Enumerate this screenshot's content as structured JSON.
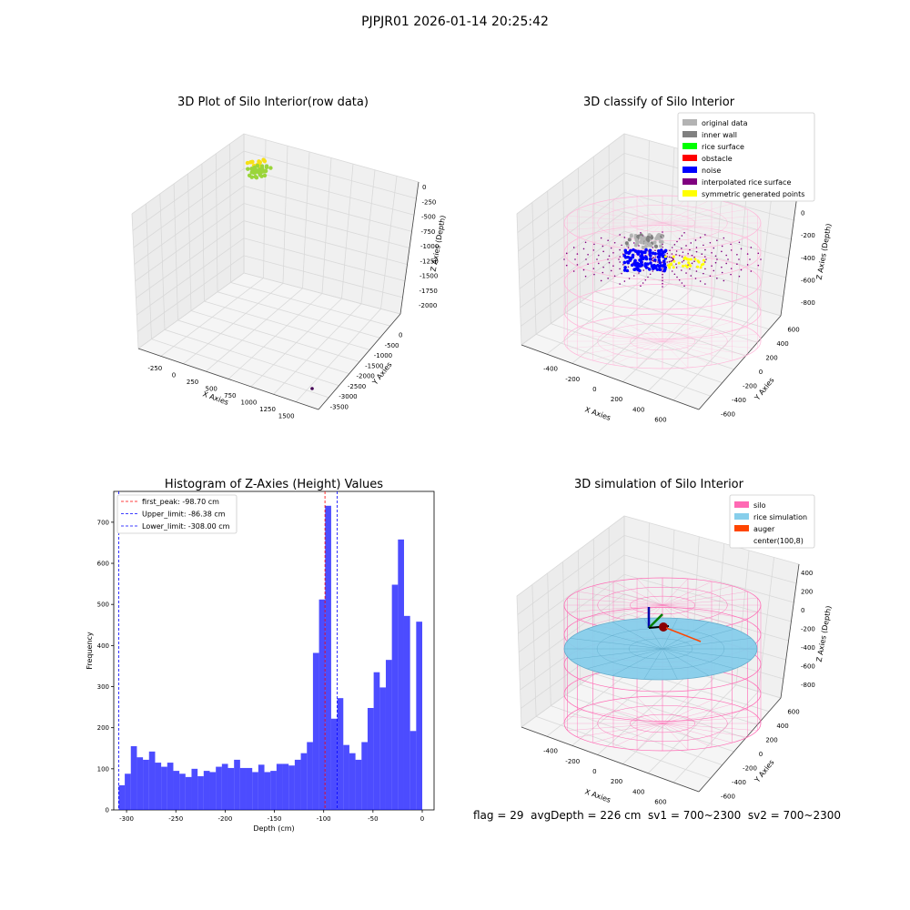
{
  "suptitle": "PJPJR01 2026-01-14 20:25:42",
  "footer": "flag = 29  avgDepth = 226 cm  sv1 = 700~2300  sv2 = 700~2300",
  "chart_data": [
    {
      "type": "scatter3d",
      "title": "3D Plot of Silo Interior(row data)",
      "xlabel": "X Axies",
      "ylabel": "Y Axies",
      "zlabel": "Z Axies (Depth)",
      "x_ticks": [
        "-250",
        "0",
        "250",
        "500",
        "750",
        "1000",
        "1250",
        "1500"
      ],
      "y_ticks": [
        "0",
        "-500",
        "-1000",
        "-1500",
        "-2000",
        "-2500",
        "-3000",
        "-3500"
      ],
      "z_ticks": [
        "0",
        "-250",
        "-500",
        "-750",
        "-1000",
        "-1250",
        "-1500",
        "-1750",
        "-2000"
      ],
      "xlim": [
        -350,
        1650
      ],
      "ylim": [
        300,
        -3700
      ],
      "zlim": [
        -2100,
        100
      ],
      "colors": {
        "cluster_top": "#f6e016",
        "cluster_bottom": "#9ad53a",
        "outlier": "#440154"
      },
      "points_note": "dense cluster near x=0, y=0, z=0 plus one outlier",
      "outlier": {
        "x": 1520,
        "y": -3650,
        "z": -2000
      }
    },
    {
      "type": "scatter3d",
      "title": "3D classify of Silo Interior",
      "xlabel": "X Axies",
      "ylabel": "Y Axies",
      "zlabel": "Z Axies (Depth)",
      "x_ticks": [
        "-400",
        "-200",
        "0",
        "200",
        "400",
        "600"
      ],
      "y_ticks": [
        "600",
        "400",
        "200",
        "0",
        "-200",
        "-400",
        "-600"
      ],
      "z_ticks": [
        "200",
        "0",
        "-200",
        "-400",
        "-600",
        "-800"
      ],
      "xlim": [
        -500,
        700
      ],
      "ylim": [
        700,
        -700
      ],
      "zlim": [
        -900,
        300
      ],
      "legend_position": "upper-right",
      "legend": [
        {
          "label": "original data",
          "color": "#b3b3b3"
        },
        {
          "label": "inner wall",
          "color": "#808080"
        },
        {
          "label": "rice surface",
          "color": "#00ff00"
        },
        {
          "label": "obstacle",
          "color": "#ff0000"
        },
        {
          "label": "noise",
          "color": "#0000ff"
        },
        {
          "label": "interpolated rice surface",
          "color": "#800080"
        },
        {
          "label": "symmetric generated points",
          "color": "#ffff00"
        }
      ],
      "silo_wire_color": "#ffb6d9"
    },
    {
      "type": "bar",
      "title": "Histogram of Z-Axies (Height) Values",
      "xlabel": "Depth (cm)",
      "ylabel": "Frequency",
      "x_ticks": [
        "-300",
        "-250",
        "-200",
        "-150",
        "-100",
        "-50",
        "0"
      ],
      "y_ticks": [
        "0",
        "100",
        "200",
        "300",
        "400",
        "500",
        "600",
        "700"
      ],
      "xlim": [
        -313,
        12
      ],
      "ylim": [
        0,
        775
      ],
      "bar_color": "#0000ff",
      "bin_width": 6.16,
      "bin_start": -308,
      "values": [
        60,
        88,
        155,
        128,
        122,
        142,
        115,
        105,
        115,
        95,
        88,
        80,
        100,
        82,
        95,
        92,
        105,
        112,
        102,
        122,
        102,
        102,
        92,
        110,
        92,
        95,
        112,
        112,
        108,
        122,
        138,
        165,
        382,
        512,
        740,
        222,
        272,
        158,
        138,
        122,
        165,
        248,
        335,
        298,
        365,
        548,
        658,
        472,
        192,
        458
      ],
      "vlines": [
        {
          "label": "first_peak: -98.70 cm",
          "x": -98.7,
          "color": "#ff0000"
        },
        {
          "label": "Upper_limit: -86.38 cm",
          "x": -86.38,
          "color": "#0000ff"
        },
        {
          "label": "Lower_limit: -308.00 cm",
          "x": -308.0,
          "color": "#0000ff"
        }
      ],
      "legend_position": "upper-left"
    },
    {
      "type": "surface3d",
      "title": "3D simulation of Silo Interior",
      "xlabel": "X Axies",
      "ylabel": "Y Axies",
      "zlabel": "Z Axies (Depth)",
      "x_ticks": [
        "-400",
        "-200",
        "0",
        "200",
        "400",
        "600"
      ],
      "y_ticks": [
        "600",
        "400",
        "200",
        "0",
        "-200",
        "-400",
        "-600"
      ],
      "z_ticks": [
        "400",
        "200",
        "0",
        "-200",
        "-400",
        "-600",
        "-800"
      ],
      "xlim": [
        -500,
        700
      ],
      "ylim": [
        700,
        -700
      ],
      "zlim": [
        -900,
        500
      ],
      "legend_position": "upper-right",
      "legend": [
        {
          "label": "silo",
          "color": "#ff69b4"
        },
        {
          "label": "rice simulation",
          "color": "#87ceeb"
        },
        {
          "label": "auger",
          "color": "#ff4500"
        },
        {
          "label": "center(100,8)",
          "color": "#ffffff"
        }
      ]
    }
  ]
}
